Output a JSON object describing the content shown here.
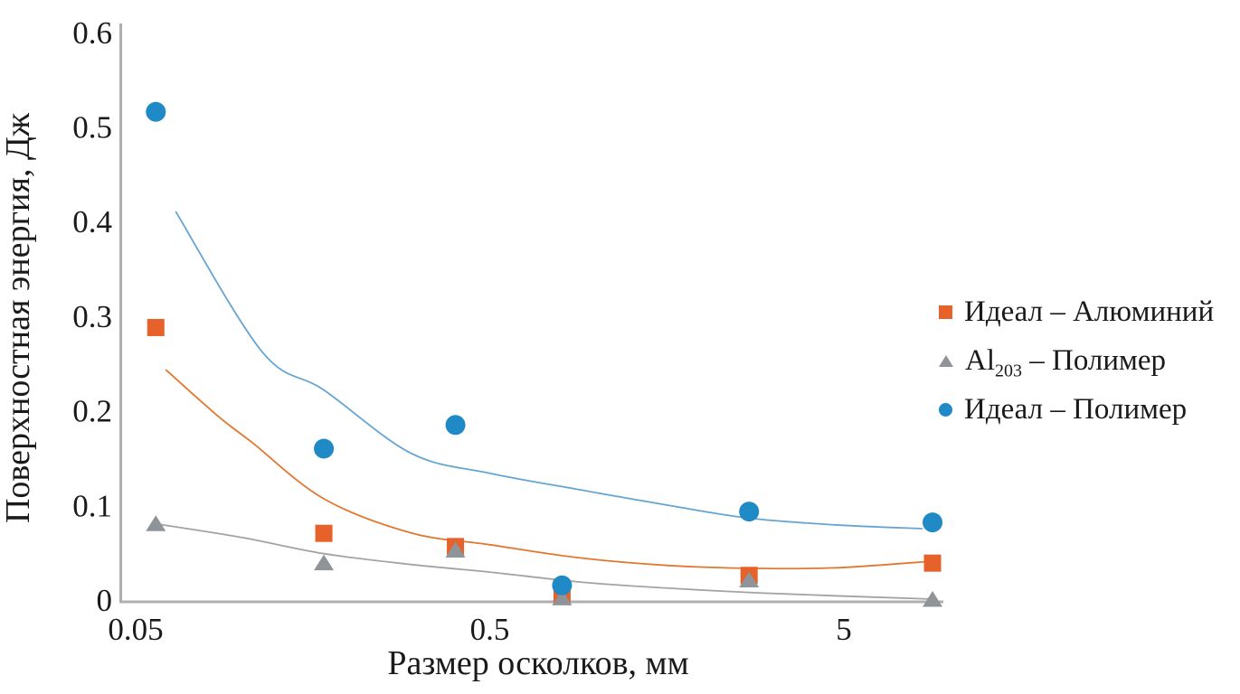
{
  "figure": {
    "background": "#ffffff",
    "axis_color": "#afafaf",
    "text_color": "#1a1a1a"
  },
  "chart_data": {
    "type": "scatter",
    "x_scale": "log",
    "title": "",
    "xlabel": "Размер осколков, мм",
    "ylabel": "Поверхностная энергия, Дж",
    "xlim": [
      0.045,
      9.8
    ],
    "ylim": [
      0,
      0.6
    ],
    "grid": false,
    "legend_position": "right-middle",
    "x_ticks": [
      {
        "value": 0.05,
        "label": "0.05"
      },
      {
        "value": 0.5,
        "label": "0.5"
      },
      {
        "value": 5,
        "label": "5"
      }
    ],
    "y_ticks": [
      {
        "value": 0,
        "label": "0"
      },
      {
        "value": 0.1,
        "label": "0.1"
      },
      {
        "value": 0.2,
        "label": "0.2"
      },
      {
        "value": 0.3,
        "label": "0.3"
      },
      {
        "value": 0.4,
        "label": "0.4"
      },
      {
        "value": 0.5,
        "label": "0.5"
      },
      {
        "value": 0.6,
        "label": "0.6"
      }
    ],
    "x": [
      0.057,
      0.17,
      0.4,
      0.8,
      2.7,
      8.9
    ],
    "series": [
      {
        "name": "Идеал – Алюминий",
        "legend": {
          "pre": "Идеал – Алюминий",
          "sub": "",
          "post": ""
        },
        "marker": "square",
        "color": "#e7612a",
        "line_color": "#e2772f",
        "values": [
          0.288,
          0.0705,
          0.0565,
          0.004,
          0.026,
          0.039
        ],
        "trend": [
          [
            0.061,
            0.243
          ],
          [
            0.085,
            0.195
          ],
          [
            0.107,
            0.166
          ],
          [
            0.17,
            0.107
          ],
          [
            0.3,
            0.071
          ],
          [
            0.5,
            0.0585
          ],
          [
            0.9,
            0.0445
          ],
          [
            1.6,
            0.0365
          ],
          [
            2.7,
            0.0335
          ],
          [
            4.7,
            0.034
          ],
          [
            8.5,
            0.0405
          ]
        ]
      },
      {
        "name": "Al203 – Полимер",
        "legend": {
          "pre": "Al",
          "sub": "203",
          "post": " – Полимер"
        },
        "marker": "triangle",
        "color": "#8f9499",
        "line_color": "#a3a3a3",
        "values": [
          0.0805,
          0.039,
          0.0525,
          0.002,
          0.021,
          0.0005
        ],
        "trend": [
          [
            0.057,
            0.0805
          ],
          [
            0.1,
            0.066
          ],
          [
            0.17,
            0.049
          ],
          [
            0.3,
            0.0375
          ],
          [
            0.5,
            0.0295
          ],
          [
            0.9,
            0.019
          ],
          [
            1.6,
            0.0125
          ],
          [
            2.7,
            0.008
          ],
          [
            4.7,
            0.0045
          ],
          [
            8.9,
            0.001
          ]
        ]
      },
      {
        "name": "Идеал – Полимер",
        "legend": {
          "pre": "Идеал – Полимер",
          "sub": "",
          "post": ""
        },
        "marker": "circle",
        "color": "#1f8ac5",
        "line_color": "#66a5d3",
        "values": [
          0.516,
          0.16,
          0.185,
          0.0155,
          0.0935,
          0.082
        ],
        "trend": [
          [
            0.065,
            0.41
          ],
          [
            0.114,
            0.262
          ],
          [
            0.17,
            0.222
          ],
          [
            0.3,
            0.155
          ],
          [
            0.5,
            0.134
          ],
          [
            0.9,
            0.1165
          ],
          [
            1.6,
            0.1
          ],
          [
            2.7,
            0.0865
          ],
          [
            4.7,
            0.0795
          ],
          [
            8.3,
            0.0755
          ]
        ]
      }
    ]
  }
}
